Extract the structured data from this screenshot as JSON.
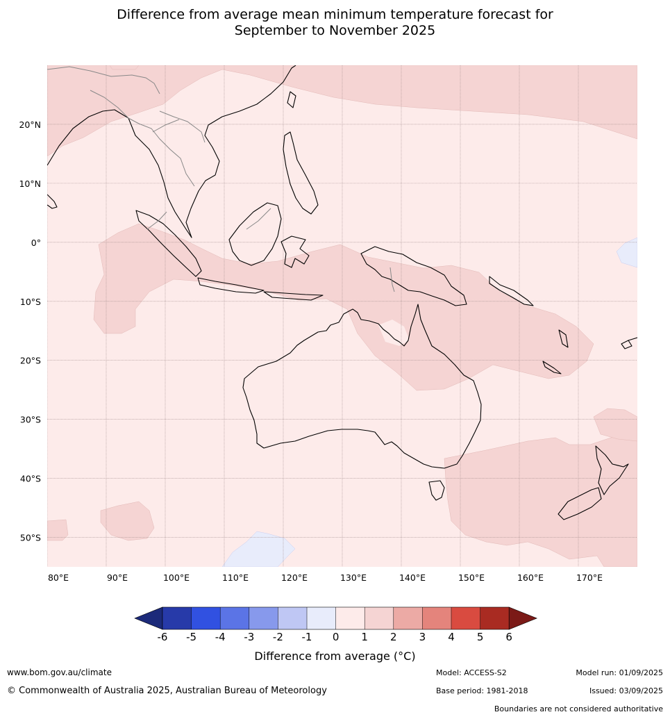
{
  "title": {
    "line1": "Difference from average mean minimum temperature forecast for",
    "line2": "September to November 2025"
  },
  "map": {
    "lon_range": [
      80,
      180
    ],
    "lat_range": [
      -55,
      30
    ],
    "lon_tick_labels": [
      "80°E",
      "90°E",
      "100°E",
      "110°E",
      "120°E",
      "130°E",
      "140°E",
      "150°E",
      "160°E",
      "170°E"
    ],
    "lat_tick_labels": [
      "20°N",
      "10°N",
      "0°",
      "10°S",
      "20°S",
      "30°S",
      "40°S",
      "50°S"
    ],
    "grid": true,
    "colors": {
      "cat_0_1": "#fdebea",
      "cat_1_2": "#f5d4d3",
      "cat_m1_0": "#e8ecfb",
      "coast": "#000000",
      "border": "#888888",
      "gridline": "#a08a8a"
    }
  },
  "colorbar": {
    "tick_labels": [
      "-6",
      "-5",
      "-4",
      "-3",
      "-2",
      "-1",
      "0",
      "1",
      "2",
      "3",
      "4",
      "5",
      "6"
    ],
    "colors": [
      "#273aa9",
      "#3151e1",
      "#5b74e6",
      "#8799ec",
      "#bfc7f4",
      "#e8ecfb",
      "#fdebea",
      "#f5d4d3",
      "#ecaaa5",
      "#e4847c",
      "#d94b40",
      "#a92b22"
    ],
    "under_color": "#1c2a7a",
    "over_color": "#7b1a17",
    "label": "Difference from average (°C)"
  },
  "footer": {
    "website": "www.bom.gov.au/climate",
    "copyright": "© Commonwealth of Australia 2025, Australian Bureau of Meteorology",
    "model": "Model: ACCESS-S2",
    "base_period": "Base period: 1981-2018",
    "model_run": "Model run: 01/09/2025",
    "issued": "Issued: 03/09/2025",
    "disclaimer": "Boundaries are not considered authoritative"
  }
}
